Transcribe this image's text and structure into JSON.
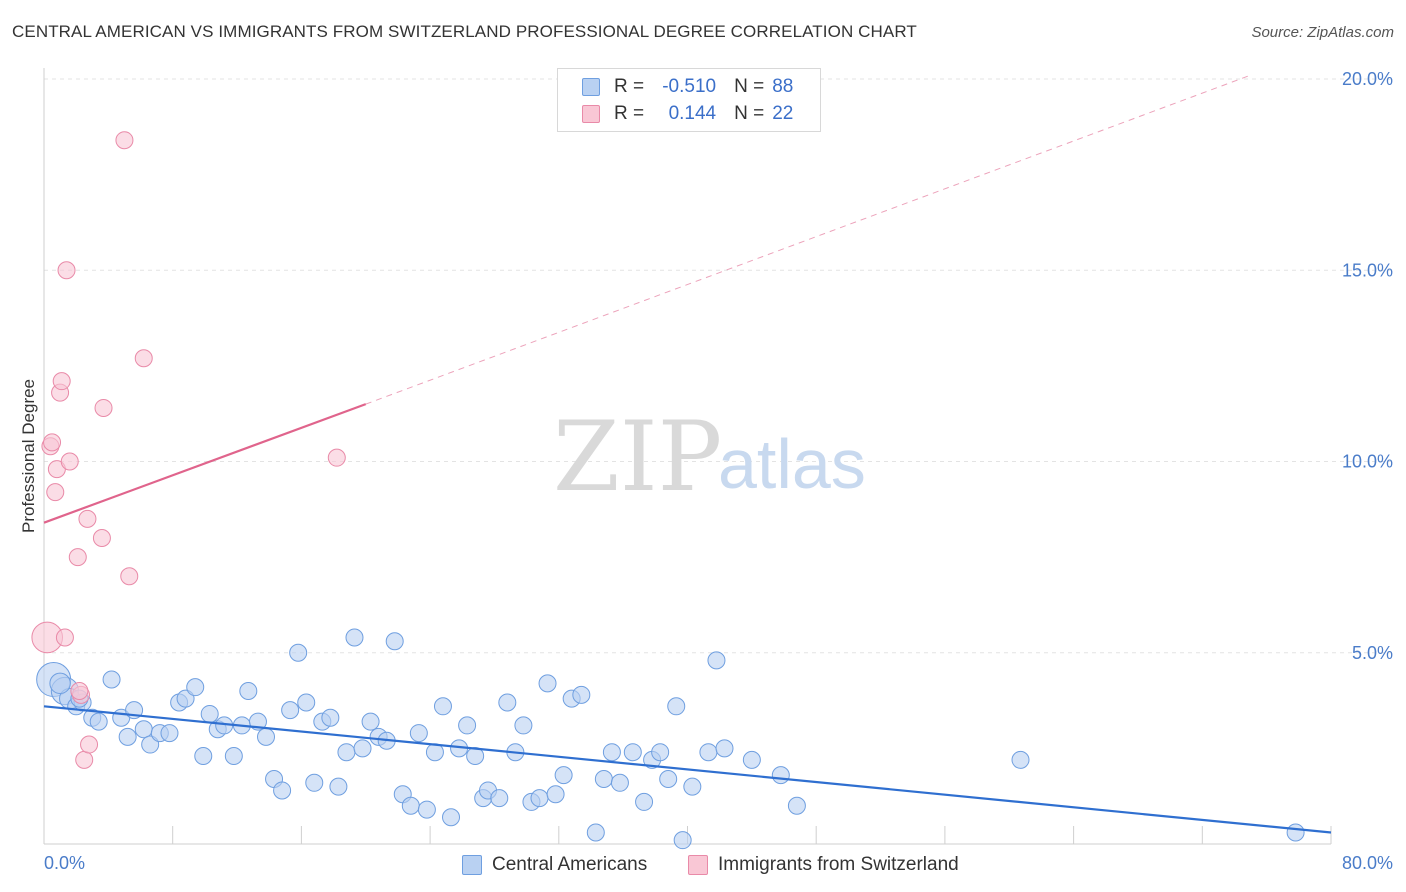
{
  "title": "CENTRAL AMERICAN VS IMMIGRANTS FROM SWITZERLAND PROFESSIONAL DEGREE CORRELATION CHART",
  "source": "Source: ZipAtlas.com",
  "watermark": {
    "zip": "ZIP",
    "atlas": "atlas"
  },
  "legend": {
    "rows": [
      {
        "r_label": "R =",
        "r_value": "-0.510",
        "n_label": "N =",
        "n_value": "88",
        "color": "#b9d1f2",
        "border": "#6f9fe0"
      },
      {
        "r_label": "R =",
        "r_value": "0.144",
        "n_label": "N =",
        "n_value": "22",
        "color": "#f9c7d5",
        "border": "#e98aa8"
      }
    ]
  },
  "bottom_legend": [
    {
      "label": "Central Americans",
      "color": "#b9d1f2",
      "border": "#6f9fe0"
    },
    {
      "label": "Immigrants from Switzerland",
      "color": "#f9c7d5",
      "border": "#e98aa8"
    }
  ],
  "chart_data": {
    "type": "scatter",
    "title": "CENTRAL AMERICAN VS IMMIGRANTS FROM SWITZERLAND PROFESSIONAL DEGREE CORRELATION CHART",
    "xlabel": "",
    "ylabel": "Professional Degree",
    "xlim": [
      0,
      80
    ],
    "ylim": [
      0,
      20
    ],
    "x_tick_labels": [
      "0.0%",
      "80.0%"
    ],
    "y_ticks": [
      5,
      10,
      15,
      20
    ],
    "y_tick_labels": [
      "5.0%",
      "10.0%",
      "15.0%",
      "20.0%"
    ],
    "grid": true,
    "legend_position": "top-center",
    "series": [
      {
        "name": "Central Americans",
        "color": "#6f9fe0",
        "fill": "#b9d1f2",
        "trend": {
          "x": [
            0,
            80
          ],
          "y": [
            3.6,
            0.3
          ],
          "style": "solid",
          "color": "#2f6fd0"
        },
        "points": [
          [
            0.6,
            4.3,
            2
          ],
          [
            1.3,
            4.0,
            1.6
          ],
          [
            1.6,
            3.8,
            1.2
          ],
          [
            2.0,
            3.6,
            1.0
          ],
          [
            2.4,
            3.7,
            1.0
          ],
          [
            3.0,
            3.3,
            1.0
          ],
          [
            3.4,
            3.2,
            1.0
          ],
          [
            4.2,
            4.3,
            1.0
          ],
          [
            4.8,
            3.3,
            1.0
          ],
          [
            5.2,
            2.8,
            1.0
          ],
          [
            5.6,
            3.5,
            1.0
          ],
          [
            6.2,
            3.0,
            1.0
          ],
          [
            6.6,
            2.6,
            1.0
          ],
          [
            7.2,
            2.9,
            1.0
          ],
          [
            7.8,
            2.9,
            1.0
          ],
          [
            8.4,
            3.7,
            1.0
          ],
          [
            8.8,
            3.8,
            1.0
          ],
          [
            9.4,
            4.1,
            1.0
          ],
          [
            9.9,
            2.3,
            1.0
          ],
          [
            10.3,
            3.4,
            1.0
          ],
          [
            10.8,
            3.0,
            1.0
          ],
          [
            11.2,
            3.1,
            1.0
          ],
          [
            11.8,
            2.3,
            1.0
          ],
          [
            12.3,
            3.1,
            1.0
          ],
          [
            12.7,
            4.0,
            1.0
          ],
          [
            13.3,
            3.2,
            1.0
          ],
          [
            13.8,
            2.8,
            1.0
          ],
          [
            14.3,
            1.7,
            1.0
          ],
          [
            14.8,
            1.4,
            1.0
          ],
          [
            15.3,
            3.5,
            1.0
          ],
          [
            15.8,
            5.0,
            1.0
          ],
          [
            16.3,
            3.7,
            1.0
          ],
          [
            16.8,
            1.6,
            1.0
          ],
          [
            17.3,
            3.2,
            1.0
          ],
          [
            17.8,
            3.3,
            1.0
          ],
          [
            18.3,
            1.5,
            1.0
          ],
          [
            18.8,
            2.4,
            1.0
          ],
          [
            19.3,
            5.4,
            1.0
          ],
          [
            19.8,
            2.5,
            1.0
          ],
          [
            20.3,
            3.2,
            1.0
          ],
          [
            20.8,
            2.8,
            1.0
          ],
          [
            21.3,
            2.7,
            1.0
          ],
          [
            21.8,
            5.3,
            1.0
          ],
          [
            22.3,
            1.3,
            1.0
          ],
          [
            22.8,
            1.0,
            1.0
          ],
          [
            23.3,
            2.9,
            1.0
          ],
          [
            23.8,
            0.9,
            1.0
          ],
          [
            24.3,
            2.4,
            1.0
          ],
          [
            24.8,
            3.6,
            1.0
          ],
          [
            25.3,
            0.7,
            1.0
          ],
          [
            25.8,
            2.5,
            1.0
          ],
          [
            26.3,
            3.1,
            1.0
          ],
          [
            26.8,
            2.3,
            1.0
          ],
          [
            27.3,
            1.2,
            1.0
          ],
          [
            27.6,
            1.4,
            1.0
          ],
          [
            28.3,
            1.2,
            1.0
          ],
          [
            28.8,
            3.7,
            1.0
          ],
          [
            29.3,
            2.4,
            1.0
          ],
          [
            29.8,
            3.1,
            1.0
          ],
          [
            30.3,
            1.1,
            1.0
          ],
          [
            30.8,
            1.2,
            1.0
          ],
          [
            31.3,
            4.2,
            1.0
          ],
          [
            31.8,
            1.3,
            1.0
          ],
          [
            32.3,
            1.8,
            1.0
          ],
          [
            32.8,
            3.8,
            1.0
          ],
          [
            33.4,
            3.9,
            1.0
          ],
          [
            34.3,
            0.3,
            1.0
          ],
          [
            34.8,
            1.7,
            1.0
          ],
          [
            35.3,
            2.4,
            1.0
          ],
          [
            35.8,
            1.6,
            1.0
          ],
          [
            36.6,
            2.4,
            1.0
          ],
          [
            37.3,
            1.1,
            1.0
          ],
          [
            37.8,
            2.2,
            1.0
          ],
          [
            38.3,
            2.4,
            1.0
          ],
          [
            38.8,
            1.7,
            1.0
          ],
          [
            39.3,
            3.6,
            1.0
          ],
          [
            39.7,
            0.1,
            1.0
          ],
          [
            40.3,
            1.5,
            1.0
          ],
          [
            41.3,
            2.4,
            1.0
          ],
          [
            41.8,
            4.8,
            1.0
          ],
          [
            42.3,
            2.5,
            1.0
          ],
          [
            44.0,
            2.2,
            1.0
          ],
          [
            45.8,
            1.8,
            1.0
          ],
          [
            46.8,
            1.0,
            1.0
          ],
          [
            60.7,
            2.2,
            1.0
          ],
          [
            77.8,
            0.3,
            1.0
          ],
          [
            2.2,
            3.8,
            1.0
          ],
          [
            1.0,
            4.2,
            1.2
          ]
        ]
      },
      {
        "name": "Immigrants from Switzerland",
        "color": "#e98aa8",
        "fill": "#f9c7d5",
        "trend": {
          "x": [
            0,
            20
          ],
          "y": [
            8.4,
            11.5
          ],
          "style": "solid",
          "x_dashed_to": 75,
          "y_dashed_to": 20.1,
          "color": "#e0648c"
        },
        "points": [
          [
            0.2,
            5.4,
            1.8
          ],
          [
            0.4,
            10.4,
            1.0
          ],
          [
            0.5,
            10.5,
            1.0
          ],
          [
            0.7,
            9.2,
            1.0
          ],
          [
            0.8,
            9.8,
            1.0
          ],
          [
            1.0,
            11.8,
            1.0
          ],
          [
            1.1,
            12.1,
            1.0
          ],
          [
            1.3,
            5.4,
            1.0
          ],
          [
            1.4,
            15.0,
            1.0
          ],
          [
            1.6,
            10.0,
            1.0
          ],
          [
            2.1,
            7.5,
            1.0
          ],
          [
            2.3,
            3.9,
            1.0
          ],
          [
            2.5,
            2.2,
            1.0
          ],
          [
            2.7,
            8.5,
            1.0
          ],
          [
            2.8,
            2.6,
            1.0
          ],
          [
            3.6,
            8.0,
            1.0
          ],
          [
            3.7,
            11.4,
            1.0
          ],
          [
            5.0,
            18.4,
            1.0
          ],
          [
            5.3,
            7.0,
            1.0
          ],
          [
            6.2,
            12.7,
            1.0
          ],
          [
            18.2,
            10.1,
            1.0
          ],
          [
            2.2,
            4.0,
            1.0
          ]
        ]
      }
    ]
  }
}
